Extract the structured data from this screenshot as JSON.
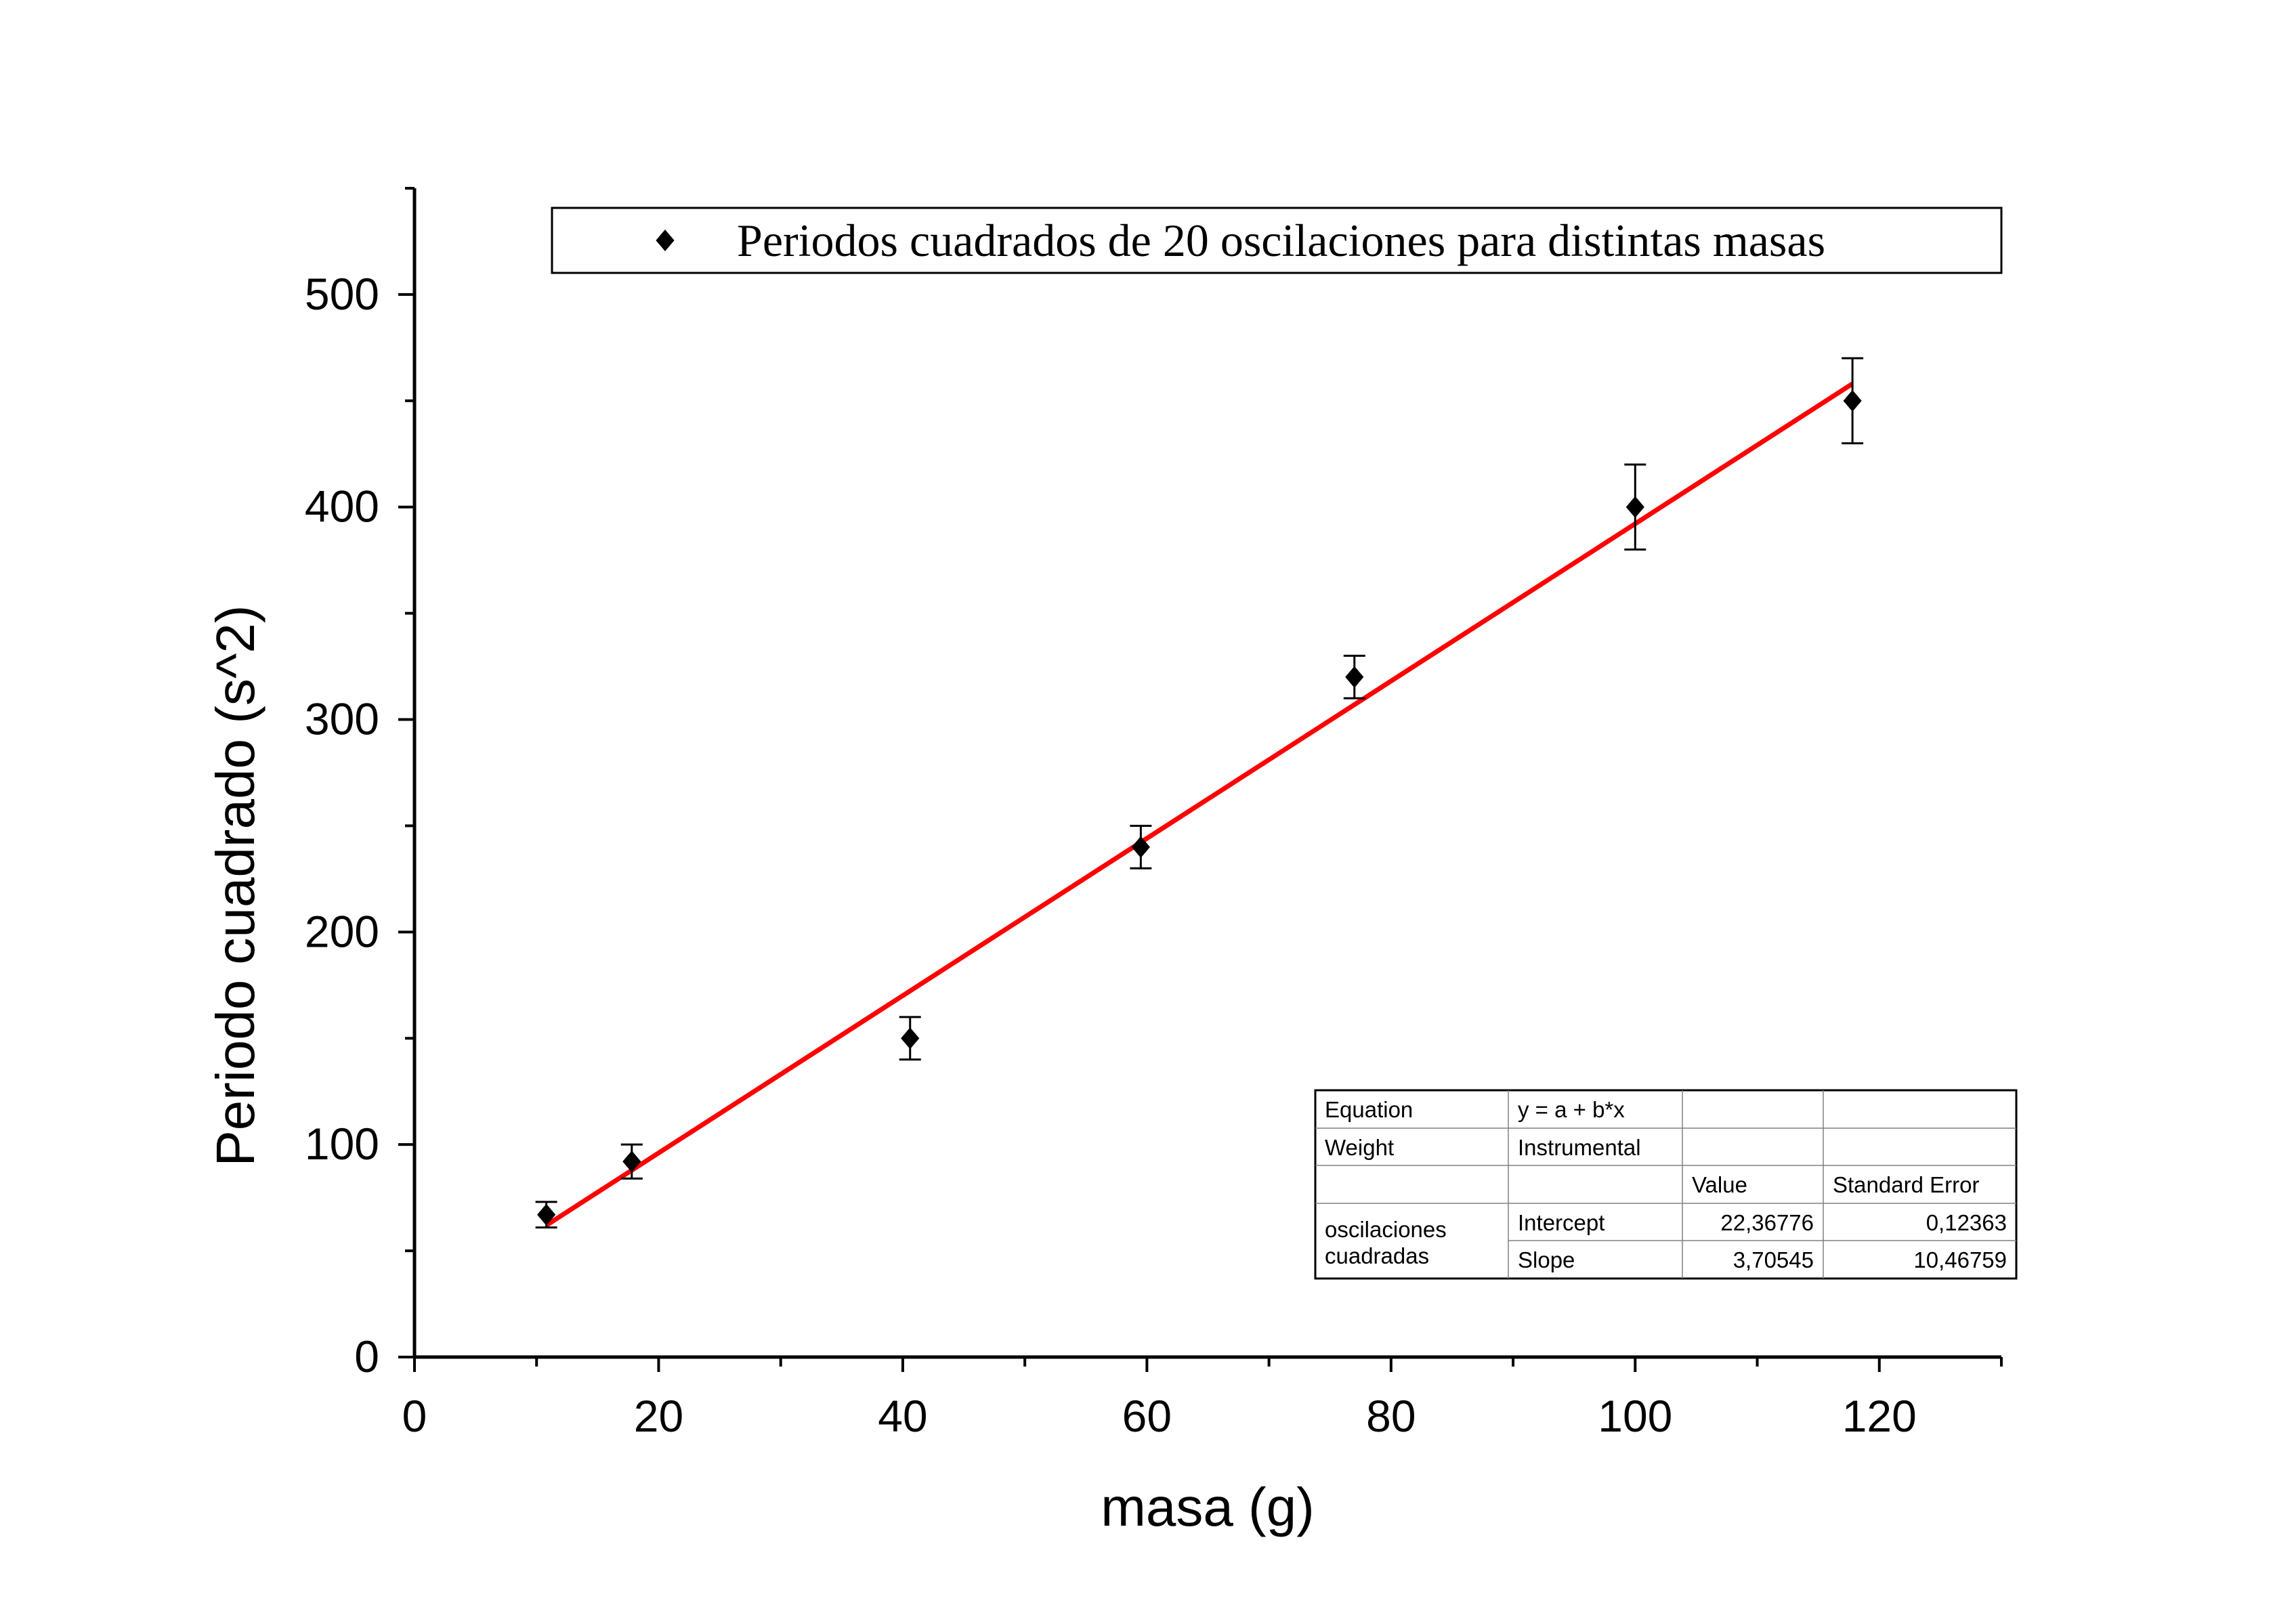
{
  "chart_data": {
    "type": "scatter",
    "xlabel": "masa (g)",
    "ylabel": "Periodo cuadrado (s^2)",
    "xlim": [
      0,
      130
    ],
    "ylim": [
      0,
      550
    ],
    "x_ticks": [
      0,
      20,
      40,
      60,
      80,
      100,
      120
    ],
    "y_ticks": [
      0,
      100,
      200,
      300,
      400,
      500
    ],
    "grid": false,
    "legend": {
      "position": "top",
      "entries": [
        "Periodos cuadrados de 20 oscilaciones para distintas masas"
      ]
    },
    "series": [
      {
        "name": "Periodos cuadrados de 20 oscilaciones para distintas masas",
        "marker": "diamond",
        "color": "#000000",
        "points": [
          {
            "x": 10.8,
            "y": 67,
            "err": 6
          },
          {
            "x": 17.8,
            "y": 92,
            "err": 8
          },
          {
            "x": 40.6,
            "y": 150,
            "err": 10
          },
          {
            "x": 59.5,
            "y": 240,
            "err": 10
          },
          {
            "x": 77.0,
            "y": 320,
            "err": 10
          },
          {
            "x": 100.0,
            "y": 400,
            "err": 20
          },
          {
            "x": 117.8,
            "y": 450,
            "err": 20
          }
        ]
      }
    ],
    "fit_line": {
      "color": "#ff0000",
      "x_start": 10.8,
      "x_end": 117.8,
      "y_start": 62,
      "y_end": 458
    },
    "fit_table": {
      "rows": [
        [
          "Equation",
          "y = a + b*x",
          "",
          ""
        ],
        [
          "Weight",
          "Instrumental",
          "",
          ""
        ],
        [
          "",
          "",
          "Value",
          "Standard Error"
        ],
        [
          "oscilaciones",
          "Intercept",
          "22,36776",
          "0,12363"
        ],
        [
          "cuadradas",
          "Slope",
          "3,70545",
          "10,46759"
        ]
      ]
    }
  }
}
